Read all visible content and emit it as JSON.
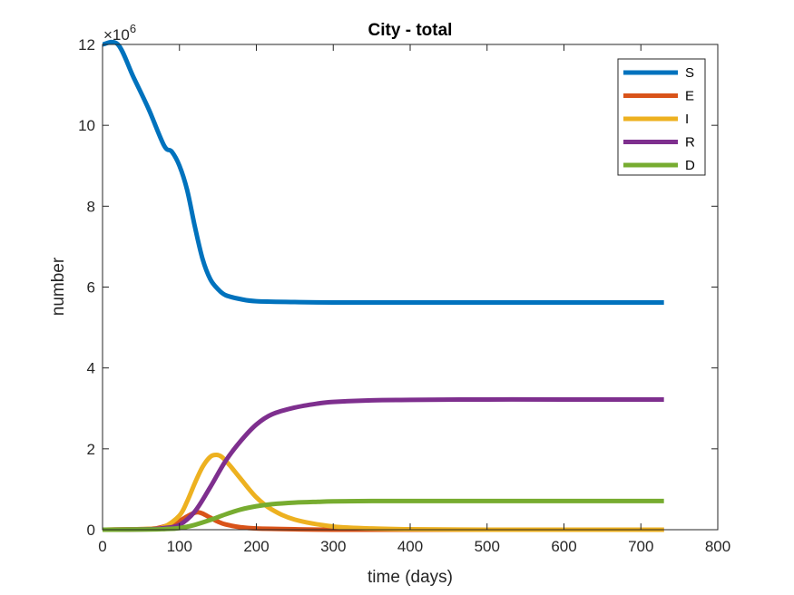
{
  "chart_data": {
    "type": "line",
    "title": "City - total",
    "xlabel": "time (days)",
    "ylabel": "number",
    "y_exponent_label": "×10",
    "y_exponent_power": "6",
    "xlim": [
      0,
      800
    ],
    "ylim": [
      0,
      12
    ],
    "x_ticks": [
      0,
      100,
      200,
      300,
      400,
      500,
      600,
      700,
      800
    ],
    "y_ticks": [
      0,
      2,
      4,
      6,
      8,
      10,
      12
    ],
    "legend_position": "top-right",
    "series": [
      {
        "name": "S",
        "color": "#0072BD",
        "x": [
          0,
          20,
          40,
          60,
          80,
          90,
          100,
          110,
          120,
          130,
          140,
          150,
          160,
          180,
          200,
          250,
          300,
          400,
          500,
          600,
          730
        ],
        "y": [
          12.0,
          12.0,
          11.2,
          10.4,
          9.5,
          9.35,
          9.0,
          8.4,
          7.5,
          6.7,
          6.2,
          5.95,
          5.8,
          5.7,
          5.65,
          5.63,
          5.62,
          5.62,
          5.62,
          5.62,
          5.62
        ]
      },
      {
        "name": "E",
        "color": "#D95319",
        "x": [
          0,
          60,
          80,
          100,
          110,
          120,
          125,
          130,
          140,
          150,
          160,
          180,
          200,
          250,
          300,
          400,
          500,
          600,
          730
        ],
        "y": [
          0,
          0.02,
          0.08,
          0.22,
          0.33,
          0.42,
          0.43,
          0.4,
          0.3,
          0.2,
          0.13,
          0.06,
          0.03,
          0.01,
          0,
          0,
          0,
          0,
          0
        ]
      },
      {
        "name": "I",
        "color": "#EDB120",
        "x": [
          0,
          60,
          80,
          100,
          110,
          120,
          130,
          140,
          148,
          155,
          165,
          180,
          200,
          220,
          250,
          300,
          350,
          400,
          500,
          600,
          730
        ],
        "y": [
          0,
          0.02,
          0.07,
          0.35,
          0.7,
          1.15,
          1.55,
          1.8,
          1.85,
          1.8,
          1.6,
          1.25,
          0.8,
          0.5,
          0.25,
          0.08,
          0.03,
          0.01,
          0,
          0,
          0
        ]
      },
      {
        "name": "R",
        "color": "#7E2F8E",
        "x": [
          0,
          60,
          80,
          100,
          120,
          140,
          160,
          180,
          200,
          220,
          250,
          280,
          300,
          350,
          400,
          500,
          600,
          730
        ],
        "y": [
          0,
          0.01,
          0.04,
          0.12,
          0.45,
          1.05,
          1.7,
          2.2,
          2.6,
          2.85,
          3.02,
          3.12,
          3.16,
          3.2,
          3.21,
          3.22,
          3.22,
          3.22
        ]
      },
      {
        "name": "D",
        "color": "#77AC30",
        "x": [
          0,
          60,
          80,
          100,
          120,
          140,
          160,
          180,
          200,
          220,
          250,
          280,
          300,
          350,
          400,
          500,
          600,
          730
        ],
        "y": [
          0,
          0.005,
          0.015,
          0.04,
          0.12,
          0.24,
          0.38,
          0.5,
          0.58,
          0.63,
          0.67,
          0.69,
          0.7,
          0.71,
          0.71,
          0.71,
          0.71,
          0.71
        ]
      }
    ]
  }
}
